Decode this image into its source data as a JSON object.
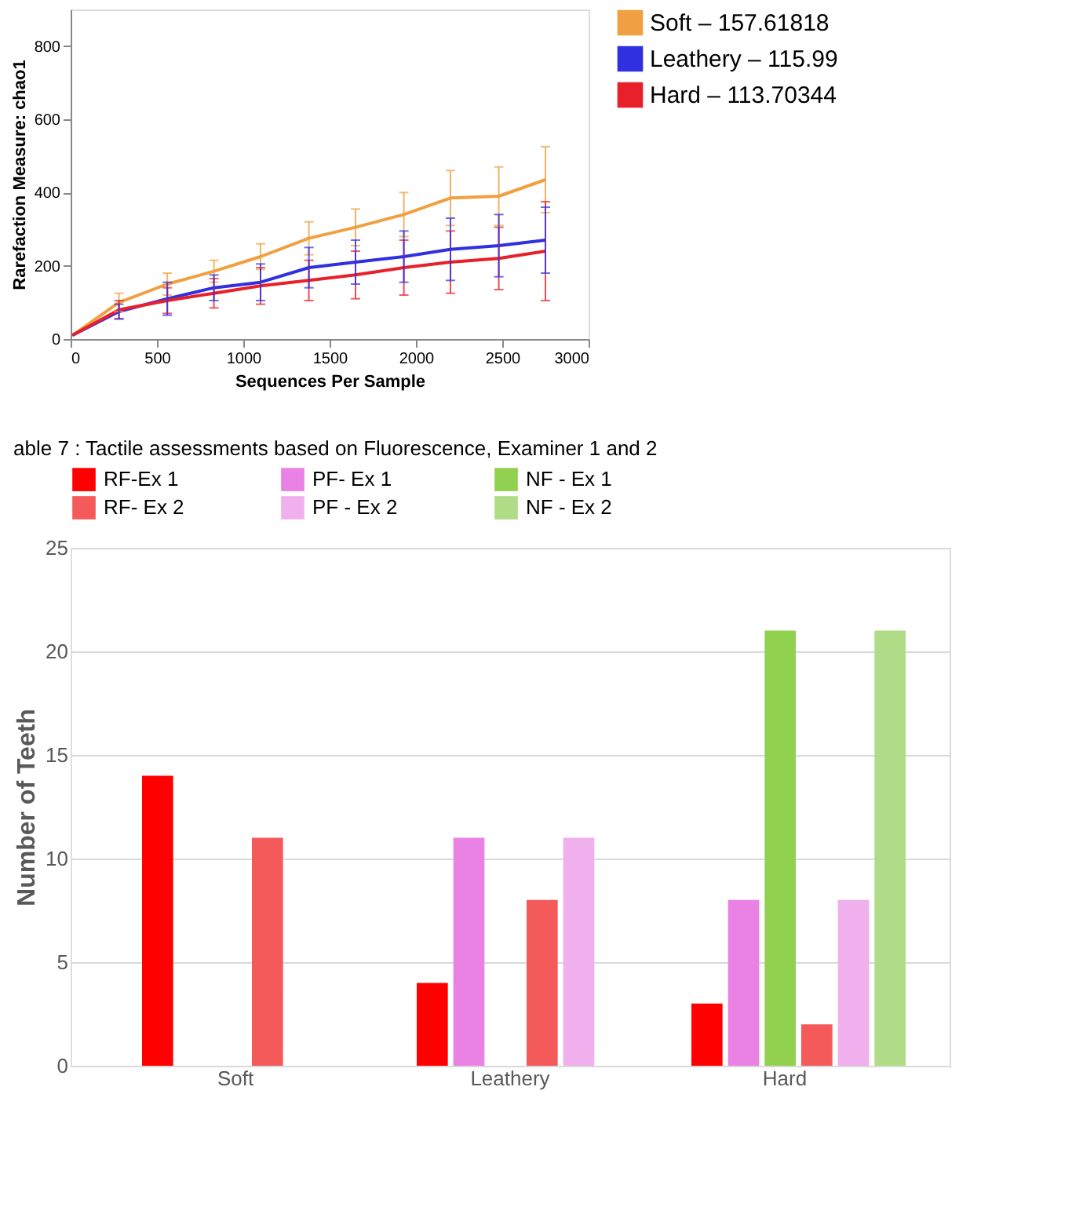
{
  "chart_data": [
    {
      "type": "line",
      "xlabel": "Sequences Per Sample",
      "ylabel": "Rarefaction Measure: chao1",
      "x": [
        10,
        280,
        560,
        830,
        1100,
        1380,
        1650,
        1930,
        2200,
        2480,
        2750
      ],
      "xlim": [
        0,
        3000
      ],
      "xticks": [
        0,
        500,
        1000,
        1500,
        2000,
        2500,
        3000
      ],
      "ylim": [
        0,
        900
      ],
      "yticks": [
        0,
        200,
        400,
        600,
        800
      ],
      "grid": false,
      "legend": "right",
      "series": [
        {
          "name": "Soft – 157.61818",
          "color": "#f0a040",
          "values": [
            10,
            100,
            150,
            185,
            225,
            275,
            305,
            340,
            385,
            390,
            435
          ],
          "errors": [
            null,
            25,
            30,
            30,
            35,
            45,
            50,
            60,
            75,
            80,
            90
          ]
        },
        {
          "name": "Leathery – 115.99",
          "color": "#3030e0",
          "values": [
            10,
            75,
            110,
            140,
            155,
            195,
            210,
            225,
            245,
            255,
            270
          ],
          "errors": [
            null,
            20,
            45,
            35,
            50,
            55,
            60,
            70,
            85,
            85,
            90
          ]
        },
        {
          "name": "Hard – 113.70344",
          "color": "#e8202a",
          "values": [
            10,
            80,
            105,
            125,
            145,
            160,
            175,
            195,
            210,
            220,
            240
          ],
          "errors": [
            null,
            25,
            35,
            40,
            50,
            55,
            65,
            75,
            85,
            85,
            135
          ]
        }
      ]
    },
    {
      "type": "bar",
      "title": "able 7 : Tactile assessments based on Fluorescence, Examiner 1 and 2",
      "ylabel": "Number of Teeth",
      "categories": [
        "Soft",
        "Leathery",
        "Hard"
      ],
      "ylim": [
        0,
        25
      ],
      "yticks": [
        0,
        5,
        10,
        15,
        20,
        25
      ],
      "grid": "y",
      "legend": "top",
      "series": [
        {
          "name": "RF-Ex 1",
          "color": "#ff0000",
          "values": [
            14,
            4,
            3
          ]
        },
        {
          "name": "PF- Ex 1",
          "color": "#ea82e6",
          "values": [
            0,
            11,
            8
          ]
        },
        {
          "name": "NF - Ex 1",
          "color": "#92d050",
          "values": [
            0,
            0,
            21
          ]
        },
        {
          "name": "RF- Ex 2",
          "color": "#f55a5a",
          "values": [
            11,
            8,
            2
          ]
        },
        {
          "name": "PF - Ex 2",
          "color": "#f0b0ee",
          "values": [
            0,
            11,
            8
          ]
        },
        {
          "name": "NF - Ex 2",
          "color": "#b0dc88",
          "values": [
            0,
            0,
            21
          ]
        }
      ]
    }
  ]
}
